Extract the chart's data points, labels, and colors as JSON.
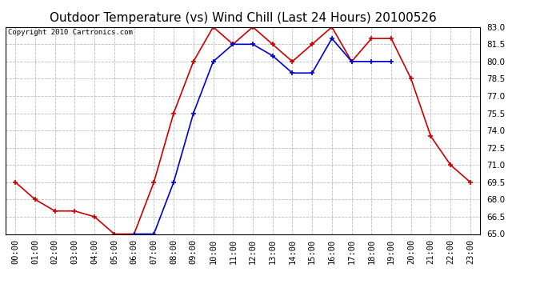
{
  "title": "Outdoor Temperature (vs) Wind Chill (Last 24 Hours) 20100526",
  "copyright": "Copyright 2010 Cartronics.com",
  "x_labels": [
    "00:00",
    "01:00",
    "02:00",
    "03:00",
    "04:00",
    "05:00",
    "06:00",
    "07:00",
    "08:00",
    "09:00",
    "10:00",
    "11:00",
    "12:00",
    "13:00",
    "14:00",
    "15:00",
    "16:00",
    "17:00",
    "18:00",
    "19:00",
    "20:00",
    "21:00",
    "22:00",
    "23:00"
  ],
  "temp_data": [
    69.5,
    68.0,
    67.0,
    67.0,
    66.5,
    65.0,
    65.0,
    69.5,
    75.5,
    80.0,
    83.0,
    81.5,
    83.0,
    81.5,
    80.0,
    81.5,
    83.0,
    80.0,
    82.0,
    82.0,
    78.5,
    73.5,
    71.0,
    69.5
  ],
  "windchill_data": [
    null,
    null,
    null,
    null,
    null,
    null,
    65.0,
    65.0,
    69.5,
    75.5,
    80.0,
    81.5,
    81.5,
    80.5,
    79.0,
    79.0,
    82.0,
    80.0,
    80.0,
    80.0,
    null,
    null,
    null,
    null
  ],
  "temp_color": "#cc0000",
  "windchill_color": "#0000cc",
  "ylim": [
    65.0,
    83.0
  ],
  "yticks": [
    65.0,
    66.5,
    68.0,
    69.5,
    71.0,
    72.5,
    74.0,
    75.5,
    77.0,
    78.5,
    80.0,
    81.5,
    83.0
  ],
  "background_color": "#ffffff",
  "grid_color": "#bbbbbb",
  "title_fontsize": 11,
  "copyright_fontsize": 6.5,
  "tick_fontsize": 7.5
}
